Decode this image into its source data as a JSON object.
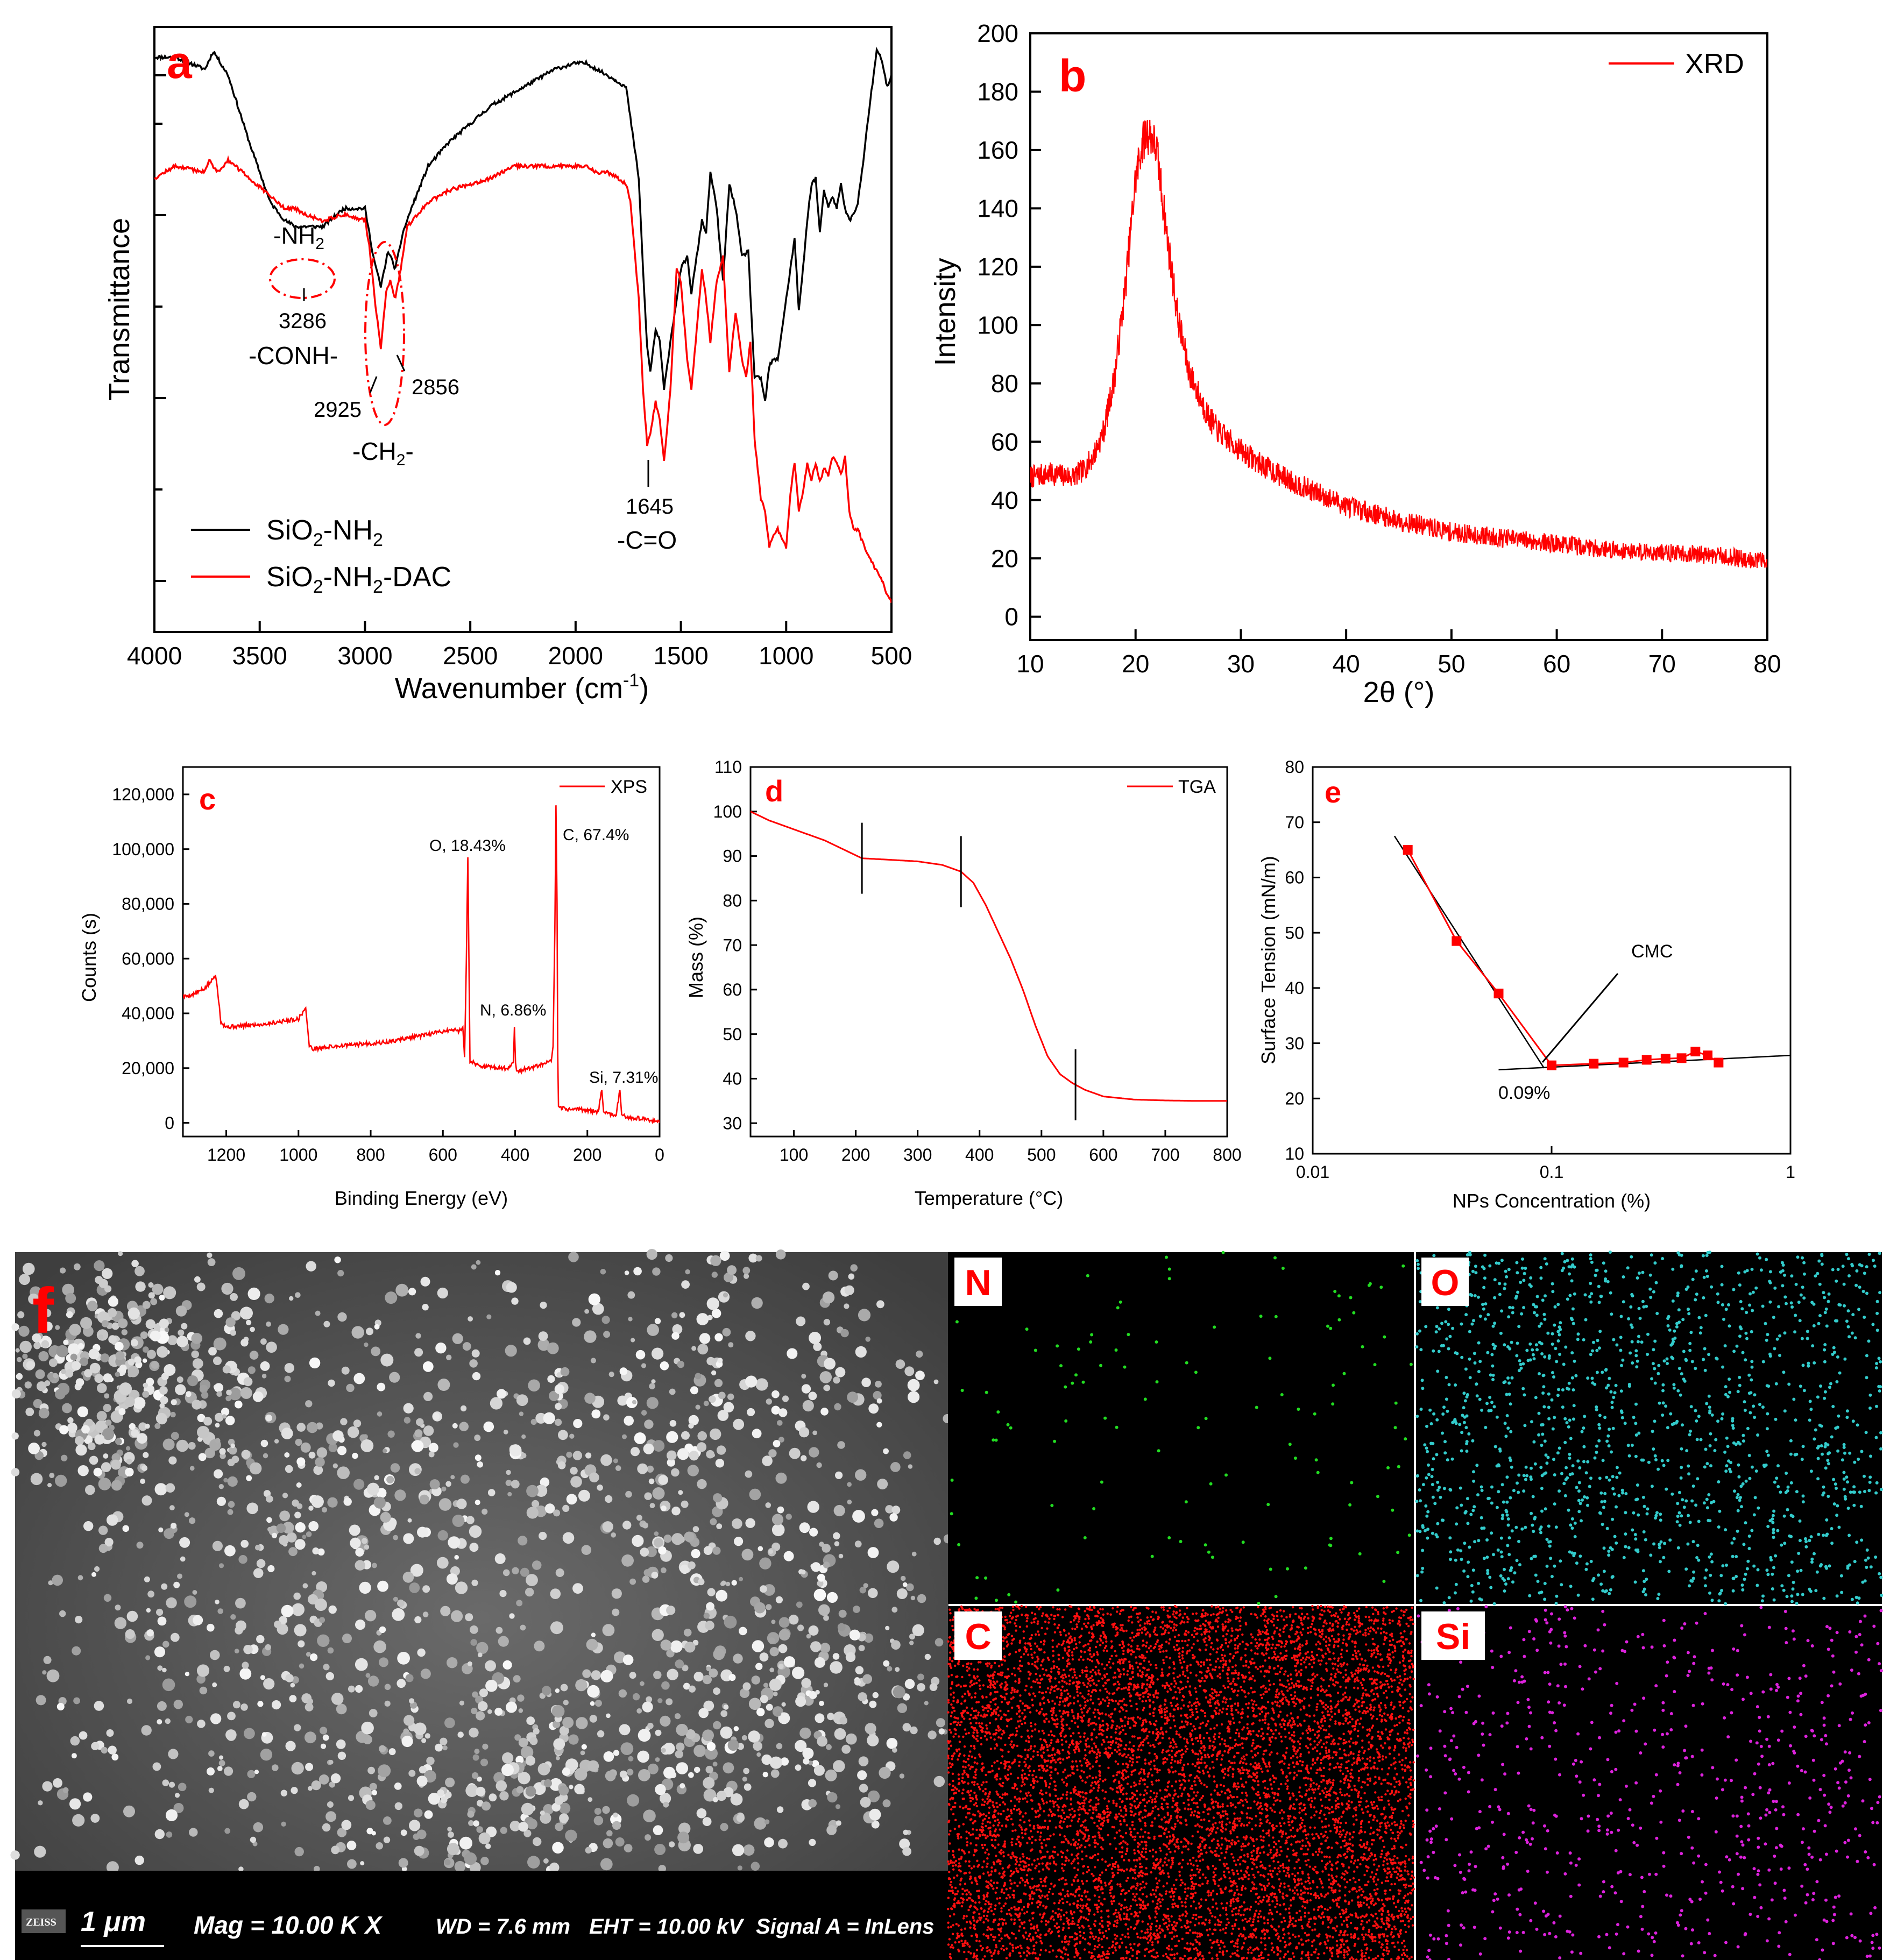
{
  "chart_data": [
    {
      "id": "a",
      "panel_label": "a",
      "type": "line",
      "title": "",
      "xlabel_pre": "Wavenumber (cm",
      "xlabel_sup": "-1",
      "xlabel_post": ")",
      "ylabel": "Transmittance",
      "xlim": [
        4000,
        500
      ],
      "ylim": [
        0,
        1
      ],
      "x_ticks": [
        4000,
        3500,
        3000,
        2500,
        2000,
        1500,
        1000,
        500
      ],
      "y_ticks_shown": false,
      "series": [
        {
          "name": "SiO2-NH2",
          "legend": {
            "base": "SiO",
            "sub1": "2",
            "mid": "-NH",
            "sub2": "2",
            "tail": ""
          },
          "color": "#000000",
          "x": [
            4000,
            3900,
            3760,
            3720,
            3650,
            3550,
            3450,
            3380,
            3330,
            3290,
            3200,
            3100,
            3000,
            2960,
            2925,
            2890,
            2856,
            2820,
            2780,
            2700,
            2600,
            2500,
            2400,
            2300,
            2200,
            2100,
            2000,
            1950,
            1900,
            1850,
            1800,
            1760,
            1740,
            1700,
            1680,
            1660,
            1645,
            1620,
            1600,
            1580,
            1550,
            1520,
            1500,
            1470,
            1450,
            1400,
            1380,
            1360,
            1330,
            1300,
            1270,
            1240,
            1210,
            1180,
            1150,
            1120,
            1100,
            1080,
            1060,
            1040,
            1000,
            980,
            960,
            940,
            920,
            900,
            880,
            860,
            840,
            820,
            800,
            780,
            760,
            740,
            720,
            700,
            680,
            660,
            640,
            600,
            570,
            550,
            520,
            500
          ],
          "y": [
            0.95,
            0.95,
            0.93,
            0.96,
            0.92,
            0.81,
            0.71,
            0.68,
            0.67,
            0.67,
            0.67,
            0.7,
            0.7,
            0.62,
            0.57,
            0.63,
            0.6,
            0.66,
            0.7,
            0.77,
            0.81,
            0.84,
            0.87,
            0.89,
            0.91,
            0.93,
            0.94,
            0.94,
            0.93,
            0.92,
            0.91,
            0.9,
            0.85,
            0.75,
            0.6,
            0.47,
            0.43,
            0.5,
            0.48,
            0.4,
            0.48,
            0.55,
            0.6,
            0.62,
            0.56,
            0.68,
            0.66,
            0.76,
            0.7,
            0.58,
            0.74,
            0.7,
            0.62,
            0.63,
            0.42,
            0.42,
            0.38,
            0.44,
            0.45,
            0.45,
            0.55,
            0.6,
            0.65,
            0.53,
            0.6,
            0.68,
            0.74,
            0.75,
            0.66,
            0.73,
            0.7,
            0.72,
            0.7,
            0.74,
            0.7,
            0.68,
            0.69,
            0.71,
            0.76,
            0.88,
            0.96,
            0.95,
            0.9,
            0.92
          ]
        },
        {
          "name": "SiO2-NH2-DAC",
          "legend": {
            "base": "SiO",
            "sub1": "2",
            "mid": "-NH",
            "sub2": "2",
            "tail": "-DAC"
          },
          "color": "#ff0000",
          "x": [
            4000,
            3900,
            3760,
            3740,
            3700,
            3650,
            3550,
            3450,
            3380,
            3330,
            3290,
            3200,
            3100,
            3000,
            2980,
            2950,
            2925,
            2900,
            2880,
            2856,
            2830,
            2800,
            2700,
            2600,
            2500,
            2400,
            2300,
            2200,
            2100,
            2000,
            1950,
            1900,
            1850,
            1800,
            1760,
            1740,
            1700,
            1680,
            1660,
            1645,
            1620,
            1600,
            1580,
            1550,
            1520,
            1500,
            1470,
            1450,
            1400,
            1380,
            1360,
            1330,
            1300,
            1270,
            1240,
            1210,
            1190,
            1170,
            1150,
            1120,
            1100,
            1080,
            1060,
            1040,
            1000,
            980,
            960,
            940,
            920,
            900,
            880,
            860,
            840,
            820,
            800,
            780,
            760,
            740,
            720,
            700,
            680,
            660,
            640,
            600,
            570,
            550,
            520,
            500
          ],
          "y": [
            0.75,
            0.77,
            0.76,
            0.78,
            0.76,
            0.78,
            0.75,
            0.72,
            0.7,
            0.7,
            0.69,
            0.68,
            0.69,
            0.68,
            0.64,
            0.54,
            0.47,
            0.56,
            0.58,
            0.55,
            0.6,
            0.67,
            0.71,
            0.73,
            0.74,
            0.75,
            0.77,
            0.77,
            0.77,
            0.77,
            0.77,
            0.76,
            0.76,
            0.75,
            0.74,
            0.71,
            0.55,
            0.4,
            0.31,
            0.33,
            0.38,
            0.35,
            0.28,
            0.4,
            0.6,
            0.58,
            0.45,
            0.4,
            0.6,
            0.55,
            0.48,
            0.58,
            0.62,
            0.43,
            0.53,
            0.45,
            0.42,
            0.48,
            0.32,
            0.22,
            0.2,
            0.14,
            0.16,
            0.17,
            0.14,
            0.23,
            0.28,
            0.2,
            0.23,
            0.28,
            0.25,
            0.28,
            0.25,
            0.27,
            0.26,
            0.29,
            0.28,
            0.26,
            0.29,
            0.2,
            0.17,
            0.17,
            0.15,
            0.12,
            0.1,
            0.09,
            0.06,
            0.05
          ]
        }
      ],
      "annotations": {
        "nh2": {
          "pre": "-NH",
          "sub": "2"
        },
        "p3286": "3286",
        "conh": "-CONH-",
        "p2925": "2925",
        "p2856": "2856",
        "ch2": {
          "pre": "-CH",
          "sub": "2",
          "post": "-"
        },
        "p1645": "1645",
        "co": "-C=O"
      }
    },
    {
      "id": "b",
      "panel_label": "b",
      "type": "line",
      "xlabel": "2θ (°)",
      "ylabel": "Intensity",
      "xlim": [
        10,
        80
      ],
      "ylim": [
        -8,
        200
      ],
      "x_ticks": [
        10,
        20,
        30,
        40,
        50,
        60,
        70,
        80
      ],
      "y_ticks": [
        0,
        20,
        40,
        60,
        80,
        100,
        120,
        140,
        160,
        180,
        200
      ],
      "series": [
        {
          "name": "XRD",
          "color": "#ff0000",
          "x": [
            10,
            12,
            14,
            15,
            16,
            17,
            18,
            19,
            20,
            20.5,
            21,
            21.5,
            22,
            23,
            24,
            25,
            26,
            27,
            28,
            30,
            32,
            35,
            40,
            45,
            50,
            55,
            60,
            65,
            70,
            75,
            80
          ],
          "y": [
            48,
            49,
            48,
            50,
            55,
            64,
            82,
            112,
            150,
            160,
            166,
            165,
            160,
            130,
            103,
            85,
            76,
            68,
            63,
            57,
            52,
            46,
            38,
            33,
            29,
            27,
            25,
            23,
            22,
            21,
            19
          ]
        }
      ]
    },
    {
      "id": "c",
      "panel_label": "c",
      "type": "line",
      "xlabel": "Binding Energy (eV)",
      "ylabel": "Counts (s)",
      "xlim": [
        1320,
        0
      ],
      "ylim": [
        -5000,
        130000
      ],
      "x_ticks": [
        1200,
        1000,
        800,
        600,
        400,
        200,
        0
      ],
      "x_tick_labels": [
        "1200",
        "1000",
        "800",
        "600",
        "400",
        "200",
        "0"
      ],
      "y_ticks": [
        0,
        20000,
        40000,
        60000,
        80000,
        100000,
        120000
      ],
      "y_tick_labels": [
        "0",
        "20,000",
        "40,000",
        "60,000",
        "80,000",
        "100,000",
        "120,000"
      ],
      "series": [
        {
          "name": "XPS",
          "color": "#ff0000",
          "x": [
            1320,
            1290,
            1260,
            1240,
            1230,
            1225,
            1215,
            1200,
            1150,
            1100,
            1050,
            1000,
            980,
            975,
            970,
            960,
            900,
            850,
            800,
            750,
            700,
            650,
            600,
            570,
            555,
            545,
            540,
            535,
            531,
            528,
            525,
            520,
            510,
            500,
            480,
            450,
            420,
            405,
            402,
            399,
            396,
            390,
            360,
            330,
            300,
            295,
            290,
            287,
            284,
            282,
            280,
            275,
            260,
            240,
            220,
            200,
            170,
            160,
            155,
            150,
            120,
            110,
            105,
            100,
            80,
            50,
            30,
            10,
            0
          ],
          "y": [
            46000,
            47000,
            49000,
            52000,
            54000,
            50000,
            37000,
            35000,
            35500,
            36000,
            37000,
            38000,
            42000,
            35000,
            28000,
            27000,
            28000,
            28500,
            29000,
            29500,
            31000,
            32000,
            33500,
            34000,
            33500,
            35000,
            24000,
            60000,
            97000,
            60000,
            22000,
            22500,
            21500,
            21000,
            20500,
            20000,
            20000,
            22000,
            35000,
            22000,
            19000,
            19000,
            20000,
            21000,
            22500,
            28000,
            70000,
            116000,
            80000,
            25000,
            6000,
            5500,
            5000,
            5000,
            5000,
            4500,
            4000,
            12000,
            4000,
            3500,
            3000,
            12000,
            3000,
            2500,
            2000,
            1500,
            1000,
            500,
            0
          ]
        }
      ],
      "peak_labels": [
        "O, 18.43%",
        "C, 67.4%",
        "N, 6.86%",
        "Si, 7.31%"
      ]
    },
    {
      "id": "d",
      "panel_label": "d",
      "type": "line",
      "xlabel": "Temperature (°C)",
      "ylabel": "Mass (%)",
      "xlim": [
        30,
        800
      ],
      "ylim": [
        27,
        110
      ],
      "x_ticks": [
        100,
        200,
        300,
        400,
        500,
        600,
        700,
        800
      ],
      "y_ticks": [
        30,
        40,
        50,
        60,
        70,
        80,
        90,
        100,
        110
      ],
      "series": [
        {
          "name": "TGA",
          "color": "#ff0000",
          "x": [
            30,
            60,
            100,
            150,
            180,
            210,
            250,
            300,
            340,
            370,
            390,
            410,
            430,
            450,
            470,
            490,
            510,
            530,
            550,
            570,
            600,
            650,
            700,
            750,
            800
          ],
          "y": [
            100,
            98,
            96,
            93.5,
            91.5,
            89.5,
            89.2,
            88.8,
            88,
            86.5,
            84,
            79,
            73,
            67,
            60,
            52,
            45,
            41,
            39,
            37.5,
            36,
            35.3,
            35.1,
            35,
            35
          ]
        }
      ],
      "markers_x": [
        210,
        370,
        555
      ]
    },
    {
      "id": "e",
      "panel_label": "e",
      "type": "scatter",
      "xlabel": "NPs Concentration (%)",
      "ylabel": "Surface Tension (mN/m)",
      "x_scale": "log",
      "xlim": [
        0.01,
        1
      ],
      "ylim": [
        10,
        80
      ],
      "x_ticks": [
        0.01,
        0.1,
        1
      ],
      "x_tick_labels": [
        "0.01",
        "0.1",
        "1"
      ],
      "y_ticks": [
        10,
        20,
        30,
        40,
        50,
        60,
        70,
        80
      ],
      "series": [
        {
          "name": "Surface Tension",
          "color": "#ff0000",
          "x": [
            0.025,
            0.04,
            0.06,
            0.1,
            0.15,
            0.2,
            0.25,
            0.3,
            0.35,
            0.4,
            0.45,
            0.5
          ],
          "y": [
            65,
            48.5,
            39,
            26,
            26.3,
            26.5,
            27,
            27.2,
            27.3,
            28.5,
            27.8,
            26.5
          ]
        }
      ],
      "fit_lines": [
        {
          "x": [
            0.022,
            0.093
          ],
          "y": [
            67.5,
            25.5
          ]
        },
        {
          "x": [
            0.06,
            1
          ],
          "y": [
            25.2,
            27.8
          ]
        }
      ],
      "annotations": {
        "cmc": "CMC",
        "cmc_value": "0.09%"
      }
    }
  ],
  "sem": {
    "panel_label": "f",
    "logo": "ZEISS",
    "scale": "1 μm",
    "mag": "Mag =   10.00 K X",
    "wd": "WD =  7.6 mm",
    "eht": "EHT = 10.00 kV",
    "signal": "Signal A = InLens"
  },
  "eds_maps": [
    {
      "element": "N",
      "color": "#22dd22"
    },
    {
      "element": "O",
      "color": "#33cccc"
    },
    {
      "element": "C",
      "color": "#ff1010"
    },
    {
      "element": "Si",
      "color": "#dd22dd"
    }
  ]
}
